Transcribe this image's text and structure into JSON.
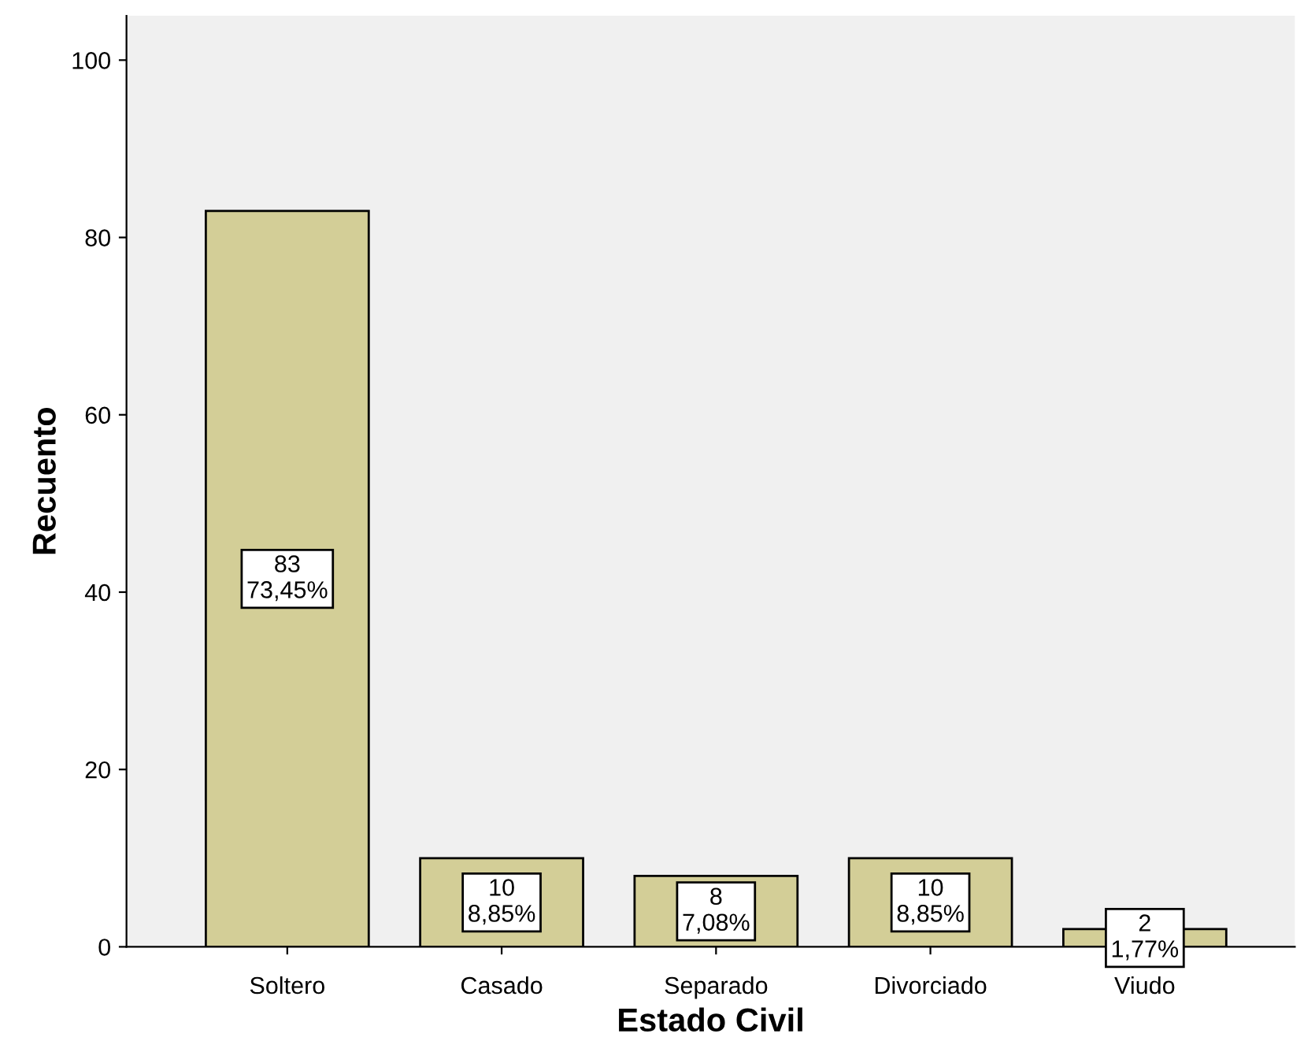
{
  "chart_data": {
    "type": "bar",
    "xlabel": "Estado Civil",
    "ylabel": "Recuento",
    "categories": [
      "Soltero",
      "Casado",
      "Separado",
      "Divorciado",
      "Viudo"
    ],
    "values": [
      83,
      10,
      8,
      10,
      2
    ],
    "value_labels": [
      "83\n73,45%",
      "10\n8,85%",
      "8\n7,08%",
      "10\n8,85%",
      "2\n1,77%"
    ],
    "color": "#d3ce97",
    "ylim": [
      0,
      105
    ],
    "yticks": [
      0,
      20,
      40,
      60,
      80,
      100
    ],
    "grid": false,
    "legend": false
  }
}
